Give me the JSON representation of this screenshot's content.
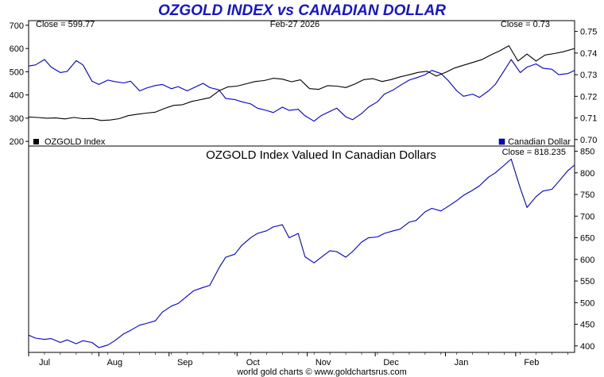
{
  "chart_data": [
    {
      "type": "line",
      "title": "OZGOLD INDEX vs CANADIAN DOLLAR",
      "date_label": "Feb-27  2026",
      "left_annotation": "Close = 599.77",
      "right_annotation": "Close = 0.73",
      "left_axis": {
        "ylim": [
          180,
          720
        ],
        "ticks": [
          "700",
          "600",
          "500",
          "400",
          "300",
          "200"
        ]
      },
      "right_axis": {
        "ylim": [
          0.697,
          0.755
        ],
        "ticks": [
          "0.75",
          "0.74",
          "0.73",
          "0.72",
          "0.71",
          "0.70"
        ]
      },
      "x": {
        "start": "2025-07-01",
        "end": "2026-02-27",
        "tick_labels": [
          "Jul",
          "Aug",
          "Sep",
          "Oct",
          "Nov",
          "Dec",
          "Jan",
          "Feb"
        ],
        "tick_dates": [
          "2025-07-01",
          "2025-08-01",
          "2025-09-01",
          "2025-10-01",
          "2025-11-01",
          "2025-12-01",
          "2026-01-01",
          "2026-02-01"
        ]
      },
      "legend": "bottom",
      "series": [
        {
          "name": "OZGOLD Index",
          "axis": "left",
          "color": "#000000",
          "points": [
            [
              "2025-07-01",
              305
            ],
            [
              "2025-07-05",
              303
            ],
            [
              "2025-07-09",
              300
            ],
            [
              "2025-07-13",
              301
            ],
            [
              "2025-07-17",
              297
            ],
            [
              "2025-07-21",
              303
            ],
            [
              "2025-07-25",
              298
            ],
            [
              "2025-07-29",
              299
            ],
            [
              "2025-08-02",
              290
            ],
            [
              "2025-08-06",
              292
            ],
            [
              "2025-08-10",
              298
            ],
            [
              "2025-08-14",
              311
            ],
            [
              "2025-08-18",
              317
            ],
            [
              "2025-08-22",
              322
            ],
            [
              "2025-08-26",
              326
            ],
            [
              "2025-08-30",
              342
            ],
            [
              "2025-09-03",
              355
            ],
            [
              "2025-09-07",
              358
            ],
            [
              "2025-09-11",
              372
            ],
            [
              "2025-09-15",
              380
            ],
            [
              "2025-09-19",
              388
            ],
            [
              "2025-09-23",
              418
            ],
            [
              "2025-09-27",
              435
            ],
            [
              "2025-10-01",
              438
            ],
            [
              "2025-10-05",
              448
            ],
            [
              "2025-10-09",
              458
            ],
            [
              "2025-10-13",
              462
            ],
            [
              "2025-10-17",
              472
            ],
            [
              "2025-10-21",
              468
            ],
            [
              "2025-10-25",
              457
            ],
            [
              "2025-10-29",
              465
            ],
            [
              "2025-11-02",
              427
            ],
            [
              "2025-11-06",
              424
            ],
            [
              "2025-11-10",
              440
            ],
            [
              "2025-11-14",
              438
            ],
            [
              "2025-11-18",
              432
            ],
            [
              "2025-11-22",
              447
            ],
            [
              "2025-11-26",
              466
            ],
            [
              "2025-11-30",
              470
            ],
            [
              "2025-12-04",
              458
            ],
            [
              "2025-12-08",
              466
            ],
            [
              "2025-12-12",
              478
            ],
            [
              "2025-12-16",
              487
            ],
            [
              "2025-12-20",
              497
            ],
            [
              "2025-12-24",
              502
            ],
            [
              "2025-12-28",
              481
            ],
            [
              "2026-01-01",
              497
            ],
            [
              "2026-01-05",
              516
            ],
            [
              "2026-01-09",
              528
            ],
            [
              "2026-01-13",
              540
            ],
            [
              "2026-01-17",
              552
            ],
            [
              "2026-01-21",
              572
            ],
            [
              "2026-01-25",
              590
            ],
            [
              "2026-01-29",
              612
            ],
            [
              "2026-02-02",
              546
            ],
            [
              "2026-02-06",
              576
            ],
            [
              "2026-02-10",
              546
            ],
            [
              "2026-02-14",
              572
            ],
            [
              "2026-02-18",
              578
            ],
            [
              "2026-02-22",
              586
            ],
            [
              "2026-02-27",
              600
            ]
          ]
        },
        {
          "name": "Canadian Dollar",
          "axis": "right",
          "color": "#0000dd",
          "points": [
            [
              "2025-07-01",
              0.734
            ],
            [
              "2025-07-04",
              0.7345
            ],
            [
              "2025-07-08",
              0.737
            ],
            [
              "2025-07-11",
              0.7335
            ],
            [
              "2025-07-15",
              0.731
            ],
            [
              "2025-07-18",
              0.7315
            ],
            [
              "2025-07-22",
              0.7365
            ],
            [
              "2025-07-25",
              0.7345
            ],
            [
              "2025-07-29",
              0.727
            ],
            [
              "2025-08-01",
              0.7255
            ],
            [
              "2025-08-05",
              0.7275
            ],
            [
              "2025-08-08",
              0.7268
            ],
            [
              "2025-08-12",
              0.7262
            ],
            [
              "2025-08-15",
              0.727
            ],
            [
              "2025-08-19",
              0.7225
            ],
            [
              "2025-08-22",
              0.7238
            ],
            [
              "2025-08-26",
              0.725
            ],
            [
              "2025-08-29",
              0.7255
            ],
            [
              "2025-09-02",
              0.7235
            ],
            [
              "2025-09-05",
              0.7245
            ],
            [
              "2025-09-09",
              0.7225
            ],
            [
              "2025-09-12",
              0.724
            ],
            [
              "2025-09-16",
              0.726
            ],
            [
              "2025-09-19",
              0.724
            ],
            [
              "2025-09-23",
              0.723
            ],
            [
              "2025-09-26",
              0.719
            ],
            [
              "2025-09-30",
              0.7185
            ],
            [
              "2025-10-03",
              0.7175
            ],
            [
              "2025-10-07",
              0.7165
            ],
            [
              "2025-10-10",
              0.7145
            ],
            [
              "2025-10-14",
              0.7135
            ],
            [
              "2025-10-17",
              0.7125
            ],
            [
              "2025-10-21",
              0.715
            ],
            [
              "2025-10-24",
              0.7135
            ],
            [
              "2025-10-28",
              0.714
            ],
            [
              "2025-10-31",
              0.711
            ],
            [
              "2025-11-04",
              0.7085
            ],
            [
              "2025-11-07",
              0.711
            ],
            [
              "2025-11-11",
              0.713
            ],
            [
              "2025-11-14",
              0.7145
            ],
            [
              "2025-11-18",
              0.7105
            ],
            [
              "2025-11-21",
              0.7092
            ],
            [
              "2025-11-25",
              0.712
            ],
            [
              "2025-11-28",
              0.715
            ],
            [
              "2025-12-02",
              0.7175
            ],
            [
              "2025-12-05",
              0.721
            ],
            [
              "2025-12-09",
              0.723
            ],
            [
              "2025-12-12",
              0.725
            ],
            [
              "2025-12-16",
              0.7275
            ],
            [
              "2025-12-19",
              0.7285
            ],
            [
              "2025-12-23",
              0.73
            ],
            [
              "2025-12-26",
              0.732
            ],
            [
              "2025-12-30",
              0.7305
            ],
            [
              "2026-01-02",
              0.7275
            ],
            [
              "2026-01-06",
              0.7225
            ],
            [
              "2026-01-09",
              0.72
            ],
            [
              "2026-01-13",
              0.721
            ],
            [
              "2026-01-16",
              0.7195
            ],
            [
              "2026-01-20",
              0.7225
            ],
            [
              "2026-01-23",
              0.7255
            ],
            [
              "2026-01-27",
              0.732
            ],
            [
              "2026-01-30",
              0.737
            ],
            [
              "2026-02-03",
              0.731
            ],
            [
              "2026-02-06",
              0.7335
            ],
            [
              "2026-02-10",
              0.735
            ],
            [
              "2026-02-13",
              0.733
            ],
            [
              "2026-02-17",
              0.7325
            ],
            [
              "2026-02-20",
              0.73
            ],
            [
              "2026-02-24",
              0.7305
            ],
            [
              "2026-02-27",
              0.732
            ]
          ]
        }
      ]
    },
    {
      "type": "line",
      "title": "OZGOLD Index Valued In Canadian Dollars",
      "right_annotation": "Close = 818.235",
      "ylim": [
        385,
        862
      ],
      "y_ticks": [
        "850",
        "800",
        "750",
        "700",
        "650",
        "600",
        "550",
        "500",
        "450",
        "400"
      ],
      "series": [
        {
          "name": "",
          "color": "#0000dd",
          "points": [
            [
              "2025-07-01",
              425
            ],
            [
              "2025-07-04",
              418
            ],
            [
              "2025-07-08",
              415
            ],
            [
              "2025-07-11",
              417
            ],
            [
              "2025-07-15",
              408
            ],
            [
              "2025-07-18",
              414
            ],
            [
              "2025-07-22",
              405
            ],
            [
              "2025-07-25",
              412
            ],
            [
              "2025-07-29",
              408
            ],
            [
              "2025-08-01",
              396
            ],
            [
              "2025-08-05",
              402
            ],
            [
              "2025-08-08",
              412
            ],
            [
              "2025-08-12",
              428
            ],
            [
              "2025-08-15",
              436
            ],
            [
              "2025-08-19",
              448
            ],
            [
              "2025-08-22",
              452
            ],
            [
              "2025-08-26",
              458
            ],
            [
              "2025-08-29",
              478
            ],
            [
              "2025-09-02",
              492
            ],
            [
              "2025-09-05",
              498
            ],
            [
              "2025-09-09",
              515
            ],
            [
              "2025-09-12",
              528
            ],
            [
              "2025-09-16",
              535
            ],
            [
              "2025-09-19",
              540
            ],
            [
              "2025-09-23",
              580
            ],
            [
              "2025-09-26",
              605
            ],
            [
              "2025-09-30",
              612
            ],
            [
              "2025-10-03",
              632
            ],
            [
              "2025-10-07",
              650
            ],
            [
              "2025-10-10",
              660
            ],
            [
              "2025-10-14",
              666
            ],
            [
              "2025-10-17",
              675
            ],
            [
              "2025-10-21",
              680
            ],
            [
              "2025-10-24",
              650
            ],
            [
              "2025-10-28",
              660
            ],
            [
              "2025-10-31",
              606
            ],
            [
              "2025-11-04",
              592
            ],
            [
              "2025-11-07",
              604
            ],
            [
              "2025-11-11",
              620
            ],
            [
              "2025-11-14",
              618
            ],
            [
              "2025-11-18",
              605
            ],
            [
              "2025-11-21",
              618
            ],
            [
              "2025-11-25",
              640
            ],
            [
              "2025-11-28",
              650
            ],
            [
              "2025-12-02",
              652
            ],
            [
              "2025-12-05",
              660
            ],
            [
              "2025-12-09",
              666
            ],
            [
              "2025-12-12",
              670
            ],
            [
              "2025-12-16",
              686
            ],
            [
              "2025-12-19",
              690
            ],
            [
              "2025-12-23",
              710
            ],
            [
              "2025-12-26",
              718
            ],
            [
              "2025-12-30",
              712
            ],
            [
              "2026-01-02",
              722
            ],
            [
              "2026-01-06",
              736
            ],
            [
              "2026-01-09",
              748
            ],
            [
              "2026-01-13",
              760
            ],
            [
              "2026-01-16",
              770
            ],
            [
              "2026-01-20",
              790
            ],
            [
              "2026-01-23",
              800
            ],
            [
              "2026-01-27",
              818
            ],
            [
              "2026-01-30",
              832
            ],
            [
              "2026-02-03",
              765
            ],
            [
              "2026-02-06",
              720
            ],
            [
              "2026-02-10",
              745
            ],
            [
              "2026-02-13",
              758
            ],
            [
              "2026-02-17",
              762
            ],
            [
              "2026-02-20",
              780
            ],
            [
              "2026-02-24",
              805
            ],
            [
              "2026-02-27",
              818
            ]
          ]
        }
      ]
    }
  ],
  "footer": "world gold charts © www.goldchartsrus.com"
}
